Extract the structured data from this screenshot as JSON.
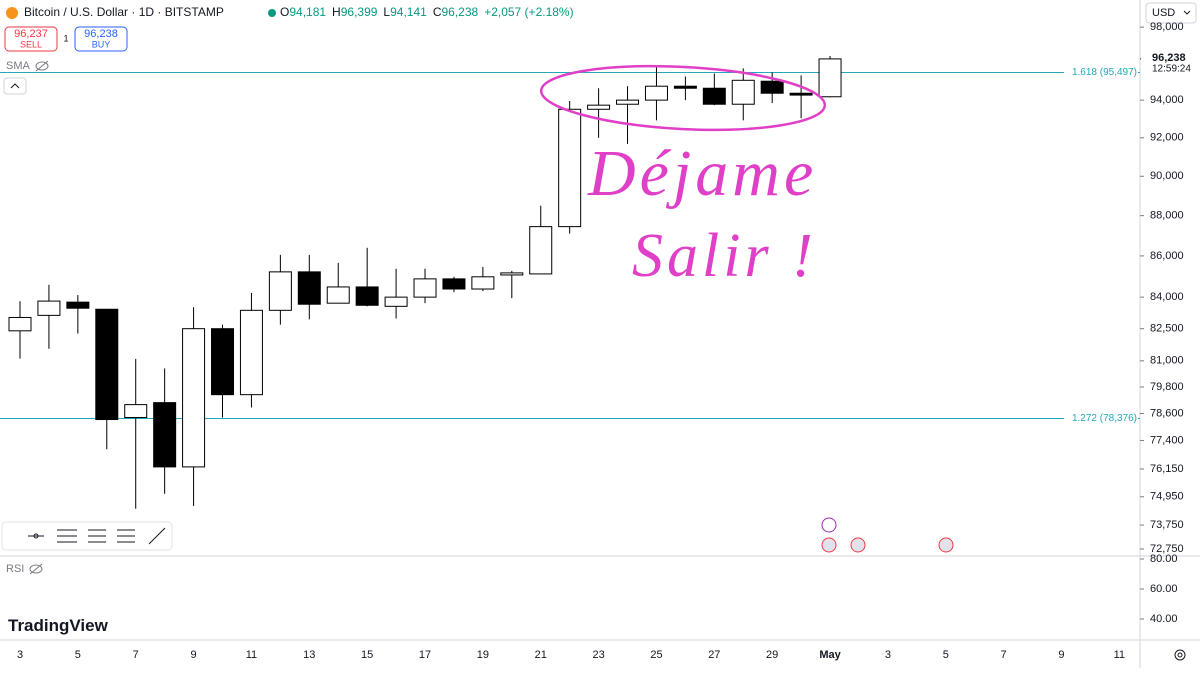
{
  "chart_data": {
    "type": "candlestick",
    "title": "Bitcoin / U.S. Dollar · 1D · BITSTAMP",
    "ohlc_header": [
      {
        "key": "O",
        "value": "94,181"
      },
      {
        "key": "H",
        "value": "96,399"
      },
      {
        "key": "L",
        "value": "94,141"
      },
      {
        "key": "C",
        "value": "96,238"
      }
    ],
    "change": "+2,057 (+2.18%)",
    "sell": {
      "price": "96,237",
      "label": "SELL"
    },
    "spread": "1",
    "buy": {
      "price": "96,238",
      "label": "BUY"
    },
    "indicator": "SMA",
    "rsi_label": "RSI",
    "brand": "TradingView",
    "currency": "USD",
    "last_price": {
      "value": 96238,
      "label": "96,238",
      "countdown": "12:59:24"
    },
    "annotation": [
      "Déjame",
      "Salir !"
    ],
    "fib_levels": [
      {
        "value": 95497,
        "label": "1.618 (95,497)"
      },
      {
        "value": 78376,
        "label": "1.272 (78,376)"
      }
    ],
    "log_scale": true,
    "ylim": [
      72500,
      98400
    ],
    "yticks": [
      {
        "value": 98000,
        "label": "98,000"
      },
      {
        "value": 94000,
        "label": "94,000"
      },
      {
        "value": 92000,
        "label": "92,000"
      },
      {
        "value": 90000,
        "label": "90,000"
      },
      {
        "value": 88000,
        "label": "88,000"
      },
      {
        "value": 86000,
        "label": "86,000"
      },
      {
        "value": 84000,
        "label": "84,000"
      },
      {
        "value": 82500,
        "label": "82,500"
      },
      {
        "value": 81000,
        "label": "81,000"
      },
      {
        "value": 79800,
        "label": "79,800"
      },
      {
        "value": 78600,
        "label": "78,600"
      },
      {
        "value": 77400,
        "label": "77,400"
      },
      {
        "value": 76150,
        "label": "76,150"
      },
      {
        "value": 74950,
        "label": "74,950"
      },
      {
        "value": 73750,
        "label": "73,750"
      },
      {
        "value": 72750,
        "label": "72,750"
      }
    ],
    "rsi_ylim": [
      26,
      82
    ],
    "rsi_yticks": [
      {
        "value": 80,
        "label": "80.00"
      },
      {
        "value": 60,
        "label": "60.00"
      },
      {
        "value": 40,
        "label": "40.00"
      }
    ],
    "x_labels": [
      "3",
      "5",
      "7",
      "9",
      "11",
      "13",
      "15",
      "17",
      "19",
      "21",
      "23",
      "25",
      "27",
      "29",
      "May",
      "3",
      "5",
      "7",
      "9",
      "11"
    ],
    "up_color": "#ffffff",
    "down_color": "#000000",
    "fib_color": "#22a8b8",
    "annotation_color": "#e040c8",
    "open": [
      82400,
      83130,
      83760,
      83420,
      78420,
      79090,
      76240,
      82500,
      79450,
      83370,
      85220,
      83710,
      84490,
      83560,
      84000,
      84880,
      84390,
      85070,
      85120,
      87450,
      93510,
      93780,
      94000,
      94750,
      94640,
      93780,
      95020,
      94370,
      94181
    ],
    "high": [
      83800,
      84590,
      84100,
      83420,
      81090,
      80650,
      83520,
      82690,
      84200,
      86050,
      86050,
      85660,
      86400,
      85370,
      85370,
      84980,
      85460,
      85270,
      88500,
      93950,
      94640,
      94750,
      95830,
      95280,
      95440,
      95720,
      95500,
      95340,
      96399
    ],
    "low": [
      81100,
      81560,
      82270,
      77010,
      74440,
      75080,
      74560,
      78420,
      78870,
      82690,
      82940,
      83710,
      83560,
      82980,
      83710,
      84240,
      84290,
      83950,
      85120,
      87100,
      92000,
      91680,
      92920,
      94000,
      93730,
      92920,
      93840,
      93030,
      94141
    ],
    "close": [
      83030,
      83810,
      83470,
      78330,
      79000,
      76240,
      82500,
      79450,
      83370,
      85220,
      83660,
      84490,
      83610,
      84000,
      84880,
      84390,
      84980,
      85170,
      87450,
      93510,
      93730,
      94000,
      94750,
      94640,
      93780,
      95070,
      94370,
      94270,
      96238
    ]
  }
}
